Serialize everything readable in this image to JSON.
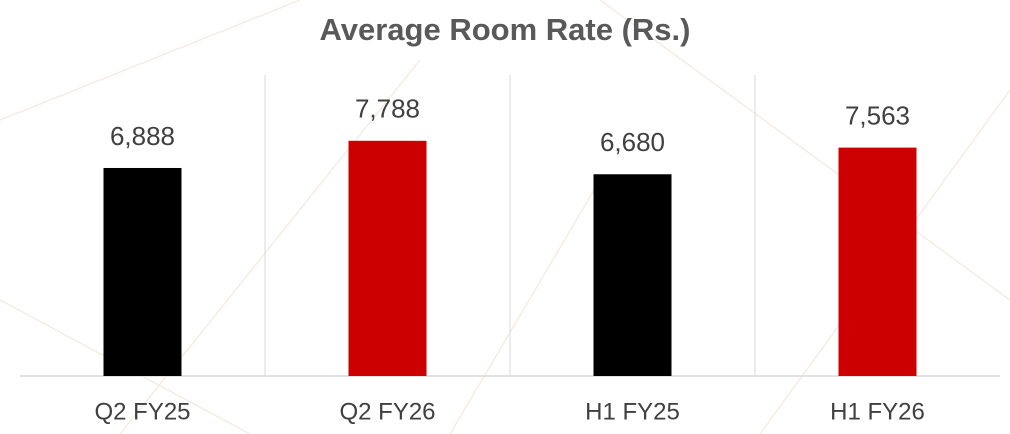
{
  "chart_data": {
    "type": "bar",
    "title": "Average Room Rate (Rs.)",
    "categories": [
      "Q2 FY25",
      "Q2 FY26",
      "H1 FY25",
      "H1 FY26"
    ],
    "values": [
      6888,
      7788,
      6680,
      7563
    ],
    "value_labels": [
      "6,888",
      "7,788",
      "6,680",
      "7,563"
    ],
    "colors": [
      "#000000",
      "#cc0000",
      "#000000",
      "#cc0000"
    ],
    "ylim": [
      0,
      10000
    ],
    "grid": false
  }
}
